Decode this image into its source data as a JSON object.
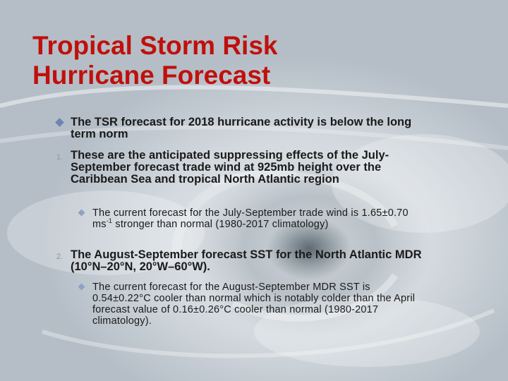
{
  "slide": {
    "title_line1": "Tropical Storm Risk",
    "title_line2": "Hurricane Forecast",
    "items": [
      {
        "marker": "diamond",
        "text": "The TSR forecast for 2018 hurricane activity is  below the long term norm"
      },
      {
        "marker": "1.",
        "text": "These are the anticipated suppressing effects of the July-September forecast trade wind at 925mb height over the Caribbean Sea and tropical North Atlantic region"
      },
      {
        "marker": "diamond",
        "text_before": "The current forecast for the July-September trade wind is 1.65±0.70 ms",
        "superscript": "-1",
        "text_after": " stronger than normal (1980-2017 climatology)"
      },
      {
        "marker": "2.",
        "text": "The August-September forecast SST for the North Atlantic MDR (10°N–20°N, 20°W–60°W)."
      },
      {
        "marker": "diamond",
        "text": "The current forecast for the August-September MDR SST is 0.54±0.22°C cooler than normal which is notably colder than the April forecast value of 0.16±0.26°C cooler than normal (1980-2017 climatology)."
      }
    ]
  },
  "colors": {
    "title": "#c0100c",
    "bullet": "#6f86b2",
    "body_text": "#1a1a1a"
  }
}
